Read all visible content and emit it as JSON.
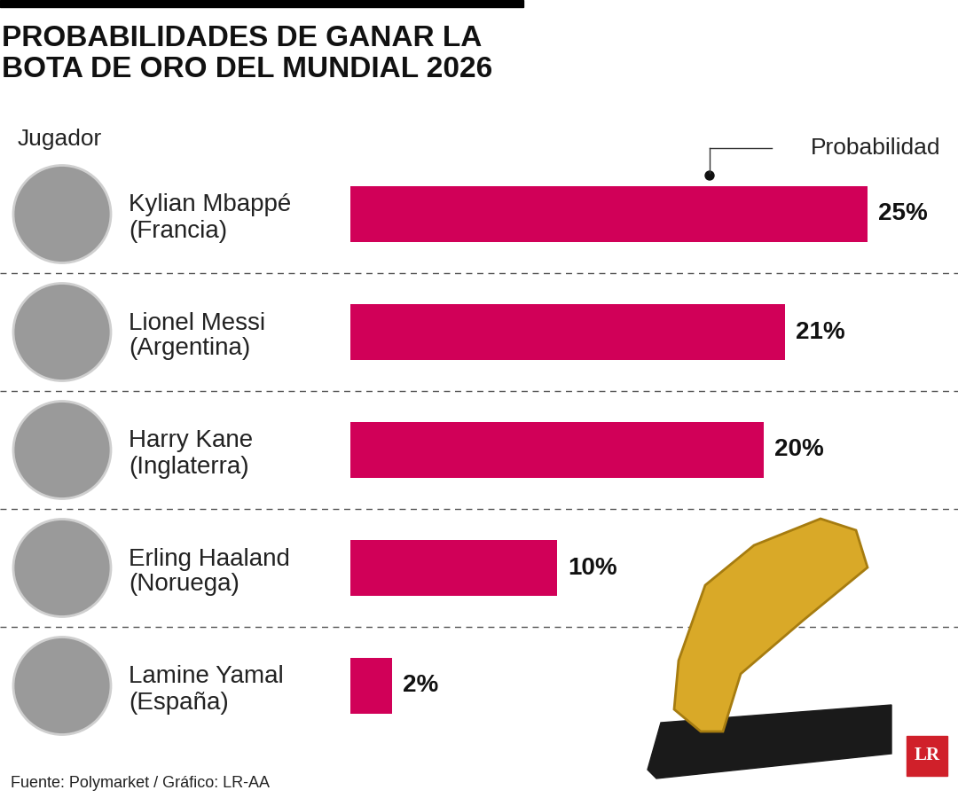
{
  "chart_data": {
    "type": "bar",
    "orientation": "horizontal",
    "title": "PROBABILIDADES DE GANAR LA\nBOTA DE ORO DEL MUNDIAL 2026",
    "ylabel": "Jugador",
    "xlabel": "Probabilidad",
    "categories": [
      "Kylian Mbappé\n(Francia)",
      "Lionel Messi\n(Argentina)",
      "Harry Kane\n(Inglaterra)",
      "Erling Haaland\n(Noruega)",
      "Lamine Yamal\n(España)"
    ],
    "values": [
      25,
      21,
      20,
      10,
      2
    ],
    "value_labels": [
      "25%",
      "21%",
      "20%",
      "10%",
      "2%"
    ],
    "data_labels": true,
    "color": "#d10058",
    "xlim": [
      0,
      25
    ],
    "tick_labels": "y",
    "grid": false,
    "source": "Fuente: Polymarket / Gráfico: LR-AA",
    "logo": "LR"
  }
}
